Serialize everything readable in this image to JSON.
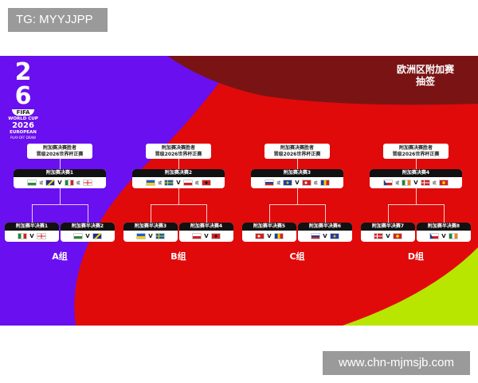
{
  "watermarks": {
    "top": "TG: MYYJJPP",
    "bottom": "www.chn-mjmsjb.com"
  },
  "logo": {
    "big": "26",
    "fifa": "FIFA",
    "line1": "WORLD CUP",
    "year": "2026",
    "line2": "EUROPEAN",
    "line3": "PLAY-OFF DRAW"
  },
  "title": {
    "line1": "欧洲区附加赛",
    "line2": "抽签"
  },
  "colors": {
    "purple": "#6a0ff0",
    "red": "#e00a0a",
    "dark_red": "#7a1414",
    "lime": "#b8e600"
  },
  "or_label": "或",
  "vs_label": "V",
  "winner_label": {
    "line1": "附加赛决赛胜者",
    "line2": "晋级2026世界杯正赛"
  },
  "groups": [
    {
      "label": "A组",
      "final": {
        "title": "附加赛决赛1",
        "home": [
          "wales-flag",
          "bosnia-flag"
        ],
        "away": [
          "italy-flag",
          "northern-ireland-flag"
        ]
      },
      "semis": [
        {
          "title": "附加赛半决赛1",
          "teams": [
            "italy-flag",
            "northern-ireland-flag"
          ]
        },
        {
          "title": "附加赛半决赛2",
          "teams": [
            "wales-flag",
            "bosnia-flag"
          ]
        }
      ]
    },
    {
      "label": "B组",
      "final": {
        "title": "附加赛决赛2",
        "home": [
          "ukraine-flag",
          "sweden-flag"
        ],
        "away": [
          "poland-flag",
          "albania-flag"
        ]
      },
      "semis": [
        {
          "title": "附加赛半决赛3",
          "teams": [
            "ukraine-flag",
            "sweden-flag"
          ]
        },
        {
          "title": "附加赛半决赛4",
          "teams": [
            "poland-flag",
            "albania-flag"
          ]
        }
      ]
    },
    {
      "label": "C组",
      "final": {
        "title": "附加赛决赛3",
        "home": [
          "slovakia-flag",
          "kosovo-flag"
        ],
        "away": [
          "turkey-flag",
          "romania-flag"
        ]
      },
      "semis": [
        {
          "title": "附加赛半决赛5",
          "teams": [
            "turkey-flag",
            "romania-flag"
          ]
        },
        {
          "title": "附加赛半决赛6",
          "teams": [
            "slovakia-flag",
            "kosovo-flag"
          ]
        }
      ]
    },
    {
      "label": "D组",
      "final": {
        "title": "附加赛决赛4",
        "home": [
          "czechia-flag",
          "ireland-flag"
        ],
        "away": [
          "denmark-flag",
          "north-macedonia-flag"
        ]
      },
      "semis": [
        {
          "title": "附加赛半决赛7",
          "teams": [
            "denmark-flag",
            "north-macedonia-flag"
          ]
        },
        {
          "title": "附加赛半决赛8",
          "teams": [
            "czechia-flag",
            "ireland-flag"
          ]
        }
      ]
    }
  ]
}
